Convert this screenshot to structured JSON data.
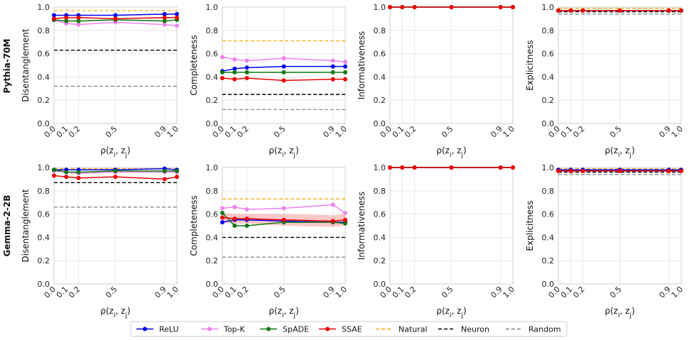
{
  "rows": [
    "Pythia-70M",
    "Gemma-2-2B"
  ],
  "colors": {
    "ReLU": "#0000ee",
    "Top-K": "#ee82ee",
    "SpADE": "#117711",
    "SSAE": "#ee0000",
    "Natural": "#ffa500",
    "Neuron": "#000000",
    "Random": "#808080"
  },
  "legend": {
    "items": [
      {
        "name": "ReLU",
        "style": "marker"
      },
      {
        "name": "Top-K",
        "style": "marker"
      },
      {
        "name": "SpADE",
        "style": "marker"
      },
      {
        "name": "SSAE",
        "style": "marker"
      },
      {
        "name": "Natural",
        "style": "dashed"
      },
      {
        "name": "Neuron",
        "style": "dashed"
      },
      {
        "name": "Random",
        "style": "dashed"
      }
    ]
  },
  "chart_data": [
    {
      "type": "line",
      "row": "Pythia-70M",
      "xlabel": "ρ(z_i, z_j)",
      "ylabel": "Disentanglement",
      "x": [
        0.0,
        0.1,
        0.2,
        0.5,
        0.9,
        1.0
      ],
      "xticks": [
        "0.0",
        "0.1",
        "0.2",
        "0.5",
        "0.9",
        "1.0"
      ],
      "yticks": [
        "0.0",
        "0.2",
        "0.4",
        "0.6",
        "0.8",
        "1.0"
      ],
      "ylim": [
        0,
        1
      ],
      "grid": true,
      "series": [
        {
          "name": "ReLU",
          "values": [
            0.93,
            0.93,
            0.93,
            0.93,
            0.94,
            0.94
          ]
        },
        {
          "name": "Top-K",
          "values": [
            0.89,
            0.86,
            0.85,
            0.87,
            0.85,
            0.84
          ]
        },
        {
          "name": "SpADE",
          "values": [
            0.89,
            0.88,
            0.88,
            0.89,
            0.88,
            0.89
          ]
        },
        {
          "name": "SSAE",
          "values": [
            0.9,
            0.91,
            0.91,
            0.9,
            0.91,
            0.91
          ]
        }
      ],
      "references": [
        {
          "name": "Natural",
          "value": 0.97
        },
        {
          "name": "Neuron",
          "value": 0.63
        },
        {
          "name": "Random",
          "value": 0.32
        }
      ]
    },
    {
      "type": "line",
      "row": "Pythia-70M",
      "xlabel": "ρ(z_i, z_j)",
      "ylabel": "Completeness",
      "x": [
        0.0,
        0.1,
        0.2,
        0.5,
        0.9,
        1.0
      ],
      "xticks": [
        "0.0",
        "0.1",
        "0.2",
        "0.5",
        "0.9",
        "1.0"
      ],
      "yticks": [
        "0.0",
        "0.2",
        "0.4",
        "0.6",
        "0.8",
        "1.0"
      ],
      "ylim": [
        0,
        1
      ],
      "grid": true,
      "series": [
        {
          "name": "ReLU",
          "values": [
            0.45,
            0.47,
            0.48,
            0.49,
            0.49,
            0.49
          ]
        },
        {
          "name": "Top-K",
          "values": [
            0.57,
            0.55,
            0.54,
            0.56,
            0.54,
            0.53
          ]
        },
        {
          "name": "SpADE",
          "values": [
            0.44,
            0.44,
            0.44,
            0.44,
            0.44,
            0.44
          ]
        },
        {
          "name": "SSAE",
          "values": [
            0.39,
            0.38,
            0.39,
            0.37,
            0.38,
            0.38
          ]
        }
      ],
      "references": [
        {
          "name": "Natural",
          "value": 0.71
        },
        {
          "name": "Neuron",
          "value": 0.25
        },
        {
          "name": "Random",
          "value": 0.12
        }
      ]
    },
    {
      "type": "line",
      "row": "Pythia-70M",
      "xlabel": "ρ(z_i, z_j)",
      "ylabel": "Informativeness",
      "x": [
        0.0,
        0.1,
        0.2,
        0.5,
        0.9,
        1.0
      ],
      "xticks": [
        "0.0",
        "0.1",
        "0.2",
        "0.5",
        "0.9",
        "1.0"
      ],
      "yticks": [
        "0.0",
        "0.2",
        "0.4",
        "0.6",
        "0.8",
        "1.0"
      ],
      "ylim": [
        0,
        1
      ],
      "grid": true,
      "series": [
        {
          "name": "ReLU",
          "values": [
            1.0,
            1.0,
            1.0,
            1.0,
            1.0,
            1.0
          ]
        },
        {
          "name": "Top-K",
          "values": [
            1.0,
            1.0,
            1.0,
            1.0,
            1.0,
            1.0
          ]
        },
        {
          "name": "SpADE",
          "values": [
            1.0,
            1.0,
            1.0,
            1.0,
            1.0,
            1.0
          ]
        },
        {
          "name": "SSAE",
          "values": [
            1.0,
            1.0,
            1.0,
            1.0,
            1.0,
            1.0
          ]
        }
      ],
      "references": [
        {
          "name": "Natural",
          "value": 1.0
        },
        {
          "name": "Neuron",
          "value": 1.0
        },
        {
          "name": "Random",
          "value": 1.0
        }
      ]
    },
    {
      "type": "line",
      "row": "Pythia-70M",
      "xlabel": "ρ(z_i, z_j)",
      "ylabel": "Explicitness",
      "x": [
        0.0,
        0.1,
        0.2,
        0.5,
        0.9,
        1.0
      ],
      "xticks": [
        "0.0",
        "0.1",
        "0.2",
        "0.5",
        "0.9",
        "1.0"
      ],
      "yticks": [
        "0.0",
        "0.2",
        "0.4",
        "0.6",
        "0.8",
        "1.0"
      ],
      "ylim": [
        0,
        1
      ],
      "grid": true,
      "series": [
        {
          "name": "ReLU",
          "values": [
            0.97,
            0.97,
            0.97,
            0.97,
            0.97,
            0.97
          ]
        },
        {
          "name": "Top-K",
          "values": [
            0.97,
            0.97,
            0.97,
            0.97,
            0.97,
            0.97
          ]
        },
        {
          "name": "SpADE",
          "values": [
            0.97,
            0.97,
            0.97,
            0.97,
            0.97,
            0.97
          ]
        },
        {
          "name": "SSAE",
          "values": [
            0.97,
            0.97,
            0.97,
            0.97,
            0.97,
            0.97
          ]
        }
      ],
      "references": [
        {
          "name": "Natural",
          "value": 0.99
        },
        {
          "name": "Neuron",
          "value": 0.96
        },
        {
          "name": "Random",
          "value": 0.94
        }
      ]
    },
    {
      "type": "line",
      "row": "Gemma-2-2B",
      "xlabel": "ρ(z_i, z_j)",
      "ylabel": "Disentanglement",
      "x": [
        0.0,
        0.1,
        0.2,
        0.5,
        0.9,
        1.0
      ],
      "xticks": [
        "0.0",
        "0.1",
        "0.2",
        "0.5",
        "0.9",
        "1.0"
      ],
      "yticks": [
        "0.0",
        "0.2",
        "0.4",
        "0.6",
        "0.8",
        "1.0"
      ],
      "ylim": [
        0,
        1
      ],
      "grid": true,
      "series": [
        {
          "name": "ReLU",
          "values": [
            0.98,
            0.98,
            0.98,
            0.98,
            0.99,
            0.98
          ]
        },
        {
          "name": "Top-K",
          "values": [
            0.97,
            0.96,
            0.95,
            0.96,
            0.96,
            0.96
          ]
        },
        {
          "name": "SpADE",
          "values": [
            0.98,
            0.96,
            0.96,
            0.97,
            0.97,
            0.97
          ]
        },
        {
          "name": "SSAE",
          "values": [
            0.93,
            0.92,
            0.91,
            0.92,
            0.9,
            0.92
          ]
        }
      ],
      "references": [
        {
          "name": "Natural",
          "value": 0.99
        },
        {
          "name": "Neuron",
          "value": 0.87
        },
        {
          "name": "Random",
          "value": 0.66
        }
      ]
    },
    {
      "type": "line",
      "row": "Gemma-2-2B",
      "xlabel": "ρ(z_i, z_j)",
      "ylabel": "Completeness",
      "x": [
        0.0,
        0.1,
        0.2,
        0.5,
        0.9,
        1.0
      ],
      "xticks": [
        "0.0",
        "0.1",
        "0.2",
        "0.5",
        "0.9",
        "1.0"
      ],
      "yticks": [
        "0.0",
        "0.2",
        "0.4",
        "0.6",
        "0.8",
        "1.0"
      ],
      "ylim": [
        0,
        1
      ],
      "grid": true,
      "series": [
        {
          "name": "ReLU",
          "values": [
            0.53,
            0.55,
            0.55,
            0.54,
            0.53,
            0.53
          ]
        },
        {
          "name": "Top-K",
          "values": [
            0.65,
            0.66,
            0.64,
            0.65,
            0.68,
            0.61
          ]
        },
        {
          "name": "SpADE",
          "values": [
            0.61,
            0.5,
            0.5,
            0.53,
            0.53,
            0.52
          ]
        },
        {
          "name": "SSAE",
          "values": [
            0.57,
            0.56,
            0.56,
            0.55,
            0.54,
            0.55
          ],
          "band": [
            [
              0.53,
              0.61
            ],
            [
              0.52,
              0.6
            ],
            [
              0.52,
              0.6
            ],
            [
              0.5,
              0.6
            ],
            [
              0.49,
              0.59
            ],
            [
              0.5,
              0.6
            ]
          ]
        }
      ],
      "references": [
        {
          "name": "Natural",
          "value": 0.73
        },
        {
          "name": "Neuron",
          "value": 0.4
        },
        {
          "name": "Random",
          "value": 0.23
        }
      ]
    },
    {
      "type": "line",
      "row": "Gemma-2-2B",
      "xlabel": "ρ(z_i, z_j)",
      "ylabel": "Informativeness",
      "x": [
        0.0,
        0.1,
        0.2,
        0.5,
        0.9,
        1.0
      ],
      "xticks": [
        "0.0",
        "0.1",
        "0.2",
        "0.5",
        "0.9",
        "1.0"
      ],
      "yticks": [
        "0.0",
        "0.2",
        "0.4",
        "0.6",
        "0.8",
        "1.0"
      ],
      "ylim": [
        0,
        1
      ],
      "grid": true,
      "series": [
        {
          "name": "ReLU",
          "values": [
            1.0,
            1.0,
            1.0,
            1.0,
            1.0,
            1.0
          ]
        },
        {
          "name": "Top-K",
          "values": [
            1.0,
            1.0,
            1.0,
            1.0,
            1.0,
            1.0
          ]
        },
        {
          "name": "SpADE",
          "values": [
            1.0,
            1.0,
            1.0,
            1.0,
            1.0,
            1.0
          ]
        },
        {
          "name": "SSAE",
          "values": [
            1.0,
            1.0,
            1.0,
            1.0,
            1.0,
            1.0
          ]
        }
      ],
      "references": [
        {
          "name": "Natural",
          "value": 1.0
        },
        {
          "name": "Neuron",
          "value": 1.0
        },
        {
          "name": "Random",
          "value": 1.0
        }
      ]
    },
    {
      "type": "line",
      "row": "Gemma-2-2B",
      "xlabel": "ρ(z_i, z_j)",
      "ylabel": "Explicitness",
      "x": [
        0.0,
        0.1,
        0.2,
        0.5,
        0.9,
        1.0
      ],
      "xticks": [
        "0.0",
        "0.1",
        "0.2",
        "0.5",
        "0.9",
        "1.0"
      ],
      "yticks": [
        "0.0",
        "0.2",
        "0.4",
        "0.6",
        "0.8",
        "1.0"
      ],
      "ylim": [
        0,
        1
      ],
      "grid": true,
      "series": [
        {
          "name": "ReLU",
          "values": [
            0.98,
            0.98,
            0.98,
            0.98,
            0.98,
            0.98
          ]
        },
        {
          "name": "Top-K",
          "values": [
            0.97,
            0.97,
            0.97,
            0.97,
            0.97,
            0.97
          ]
        },
        {
          "name": "SpADE",
          "values": [
            0.97,
            0.97,
            0.97,
            0.97,
            0.97,
            0.97
          ]
        },
        {
          "name": "SSAE",
          "values": [
            0.97,
            0.97,
            0.97,
            0.97,
            0.97,
            0.97
          ]
        }
      ],
      "references": [
        {
          "name": "Natural",
          "value": 0.99
        },
        {
          "name": "Neuron",
          "value": 0.96
        },
        {
          "name": "Random",
          "value": 0.94
        }
      ]
    }
  ]
}
